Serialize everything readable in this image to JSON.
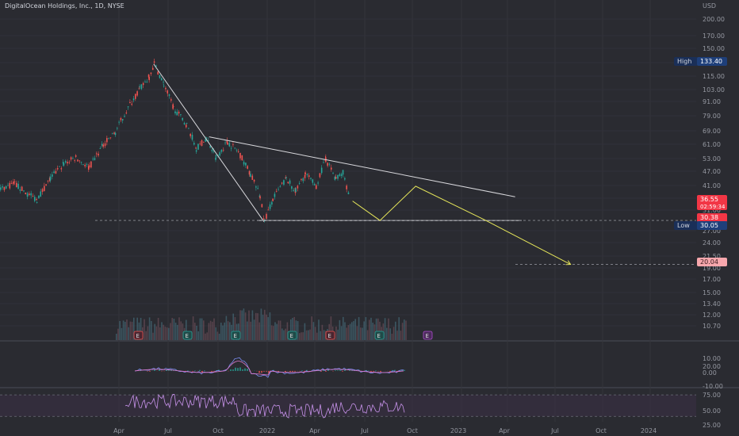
{
  "header": {
    "title": "DigitalOcean Holdings, Inc., 1D, NYSE",
    "currency": "USD"
  },
  "colors": {
    "up": "#26a69a",
    "down": "#ef5350",
    "trendline": "#d8d8dc",
    "projection": "#e6e65a",
    "macd": "#7b8cf0",
    "signal": "#e07bd0",
    "rsi": "#c792ea",
    "badge_high": "#1e3f7a",
    "badge_low": "#1e3f7a",
    "badge_price": "#f23645",
    "badge_target": "#f7a7ad"
  },
  "price_axis": {
    "ticks": [
      "200.00",
      "170.00",
      "150.00",
      "130.00",
      "115.00",
      "103.00",
      "91.00",
      "79.00",
      "69.00",
      "61.00",
      "53.00",
      "47.00",
      "41.00",
      "36.00",
      "31.00",
      "27.00",
      "24.00",
      "21.50",
      "19.00",
      "17.00",
      "15.00",
      "13.40",
      "12.00",
      "10.70"
    ],
    "scale": "log",
    "ylim": [
      9.8,
      220
    ]
  },
  "macd_axis": {
    "ticks": [
      "20.00",
      "10.00",
      "0.00",
      "-10.00"
    ]
  },
  "rsi_axis": {
    "ticks": [
      "75.00",
      "50.00",
      "25.00"
    ]
  },
  "time_axis": {
    "labels": [
      "Apr",
      "Jul",
      "Oct",
      "2022",
      "Apr",
      "Jul",
      "Oct",
      "2023",
      "Apr",
      "Jul",
      "Oct",
      "2024"
    ]
  },
  "badges": {
    "high": {
      "label": "High",
      "value": "133.40"
    },
    "low": {
      "label": "Low",
      "value": "30.05"
    },
    "current": {
      "value": "36.55",
      "countdown": "02:59:34"
    },
    "support": {
      "value": "30.38"
    },
    "target": {
      "value": "20.04"
    }
  },
  "earnings": [
    "E",
    "E",
    "E",
    "E",
    "E",
    "E",
    "E"
  ],
  "chart_data": {
    "type": "line",
    "title": "DigitalOcean Holdings, Inc., 1D, NYSE",
    "x_range": [
      "2021-03-24",
      "2024-03-20"
    ],
    "price_path": [
      {
        "x": "2021-03-24",
        "y": 41
      },
      {
        "x": "2021-04-15",
        "y": 43
      },
      {
        "x": "2021-05-05",
        "y": 39
      },
      {
        "x": "2021-05-20",
        "y": 37
      },
      {
        "x": "2021-06-10",
        "y": 45
      },
      {
        "x": "2021-07-01",
        "y": 52
      },
      {
        "x": "2021-07-20",
        "y": 55
      },
      {
        "x": "2021-08-10",
        "y": 50
      },
      {
        "x": "2021-09-01",
        "y": 62
      },
      {
        "x": "2021-09-20",
        "y": 70
      },
      {
        "x": "2021-10-10",
        "y": 88
      },
      {
        "x": "2021-10-28",
        "y": 105
      },
      {
        "x": "2021-11-12",
        "y": 118
      },
      {
        "x": "2021-11-20",
        "y": 133.4
      },
      {
        "x": "2021-12-05",
        "y": 110
      },
      {
        "x": "2021-12-20",
        "y": 88
      },
      {
        "x": "2022-01-10",
        "y": 75
      },
      {
        "x": "2022-01-25",
        "y": 60
      },
      {
        "x": "2022-02-10",
        "y": 66
      },
      {
        "x": "2022-02-25",
        "y": 55
      },
      {
        "x": "2022-03-15",
        "y": 64
      },
      {
        "x": "2022-04-01",
        "y": 58
      },
      {
        "x": "2022-04-20",
        "y": 47
      },
      {
        "x": "2022-05-05",
        "y": 38
      },
      {
        "x": "2022-05-12",
        "y": 30.05
      },
      {
        "x": "2022-05-25",
        "y": 37
      },
      {
        "x": "2022-06-15",
        "y": 45
      },
      {
        "x": "2022-06-30",
        "y": 40
      },
      {
        "x": "2022-07-15",
        "y": 47
      },
      {
        "x": "2022-08-01",
        "y": 42
      },
      {
        "x": "2022-08-16",
        "y": 54
      },
      {
        "x": "2022-09-01",
        "y": 45
      },
      {
        "x": "2022-09-12",
        "y": 48
      },
      {
        "x": "2022-09-23",
        "y": 36.55
      }
    ],
    "trendlines": [
      {
        "name": "peak-to-low",
        "points": [
          {
            "x": "2021-11-20",
            "y": 133.4
          },
          {
            "x": "2022-05-12",
            "y": 30.05
          }
        ]
      },
      {
        "name": "descending-resistance",
        "points": [
          {
            "x": "2022-02-15",
            "y": 67
          },
          {
            "x": "2023-06-10",
            "y": 38
          }
        ]
      },
      {
        "name": "support",
        "points": [
          {
            "x": "2022-05-01",
            "y": 30.38
          },
          {
            "x": "2023-06-20",
            "y": 30.38
          }
        ]
      }
    ],
    "projection": [
      {
        "x": "2022-09-28",
        "y": 36.5
      },
      {
        "x": "2022-11-10",
        "y": 30.38
      },
      {
        "x": "2023-01-05",
        "y": 42
      },
      {
        "x": "2023-04-25",
        "y": 30.38
      },
      {
        "x": "2023-09-05",
        "y": 20.04
      }
    ],
    "levels": {
      "high": 133.4,
      "low": 30.05,
      "current": 36.55,
      "support": 30.38,
      "target": 20.04
    },
    "macd": {
      "ylim": [
        -12,
        22
      ]
    },
    "rsi": {
      "ylim": [
        20,
        82
      ],
      "bands": [
        70,
        30
      ]
    }
  }
}
